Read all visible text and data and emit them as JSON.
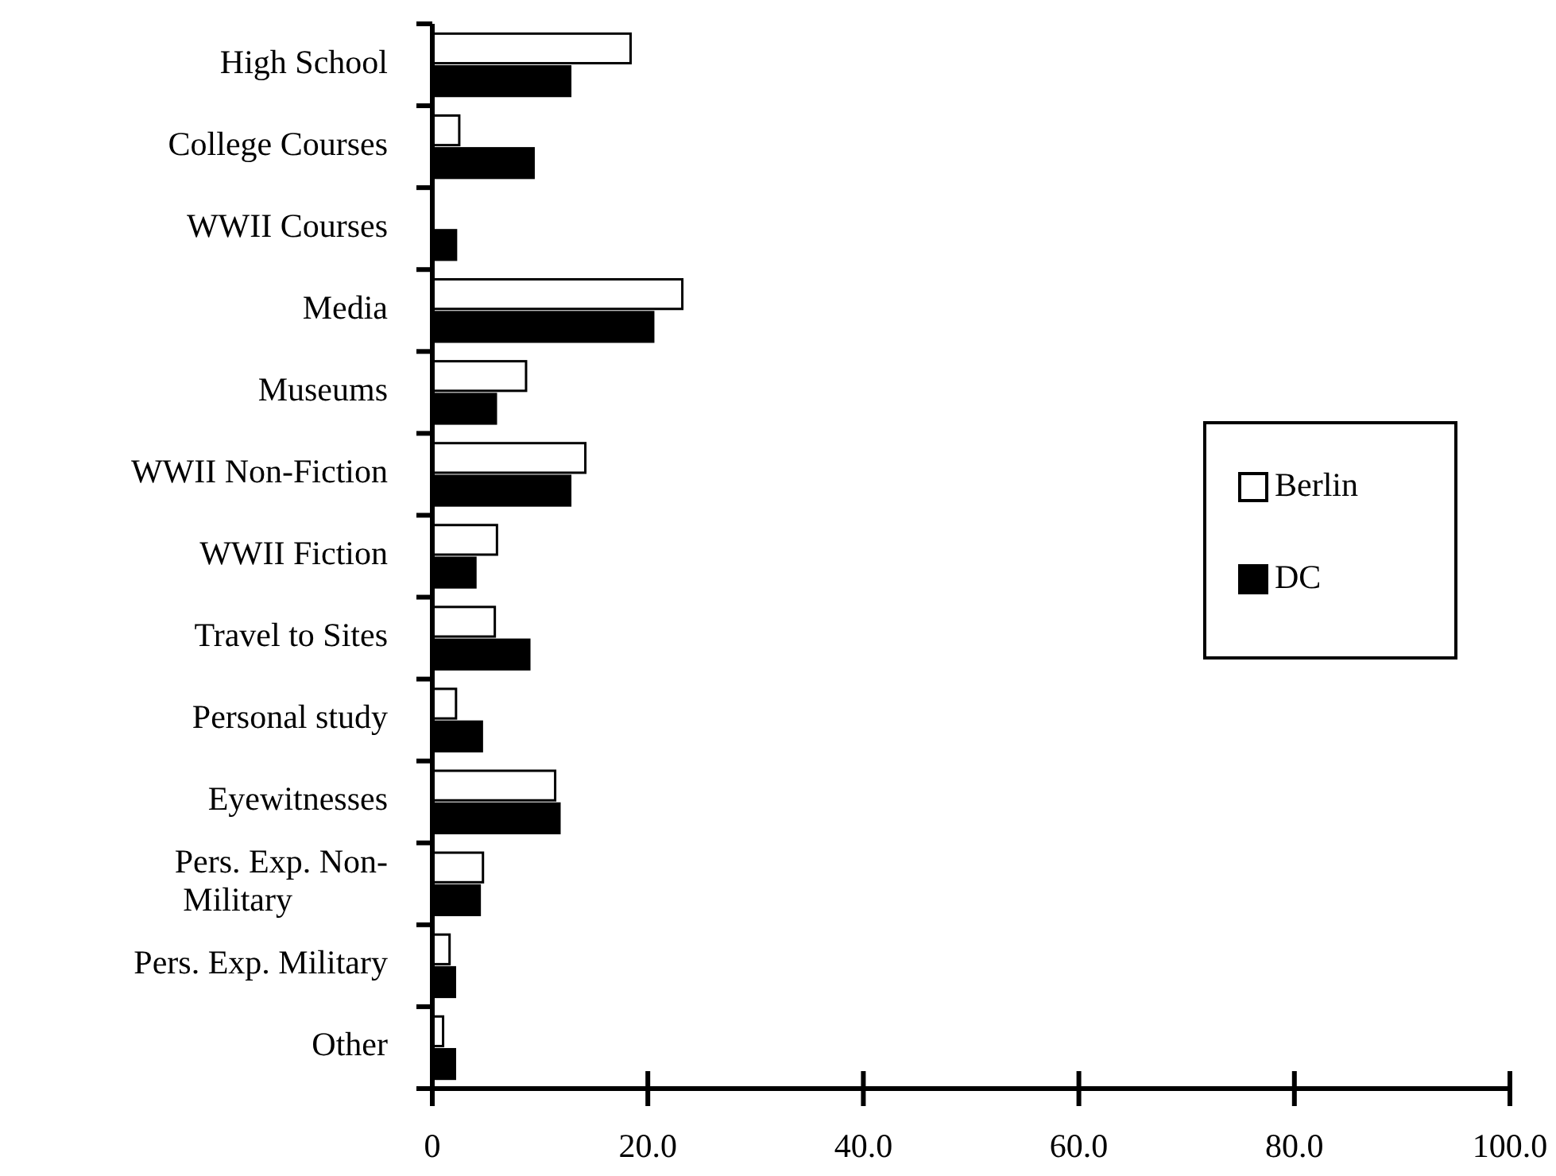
{
  "chart_data": {
    "type": "bar",
    "orientation": "horizontal",
    "categories": [
      "High School",
      "College Courses",
      "WWII Courses",
      "Media",
      "Museums",
      "WWII Non-Fiction",
      "WWII Fiction",
      "Travel to Sites",
      "Personal study",
      "Eyewitnesses",
      "Pers. Exp. Non-Military",
      "Pers. Exp. Military",
      "Other"
    ],
    "series": [
      {
        "name": "Berlin",
        "color": "#ffffff",
        "values": [
          18.4,
          2.5,
          0,
          23.2,
          8.7,
          14.2,
          6.0,
          5.8,
          2.2,
          11.4,
          4.7,
          1.6,
          1.0
        ]
      },
      {
        "name": "DC",
        "color": "#000000",
        "values": [
          12.8,
          9.4,
          2.2,
          20.5,
          5.9,
          12.8,
          4.0,
          9.0,
          4.6,
          11.8,
          4.4,
          2.1,
          2.1
        ]
      }
    ],
    "xlim": [
      0,
      100
    ],
    "xticks": [
      0,
      {
        "value": 20,
        "label": "20.0"
      },
      {
        "value": 40,
        "label": "40.0"
      },
      {
        "value": 60,
        "label": "60.0"
      },
      {
        "value": 80,
        "label": "80.0"
      },
      {
        "value": 100,
        "label": "100.0"
      }
    ],
    "grid": false,
    "legend": "right"
  }
}
